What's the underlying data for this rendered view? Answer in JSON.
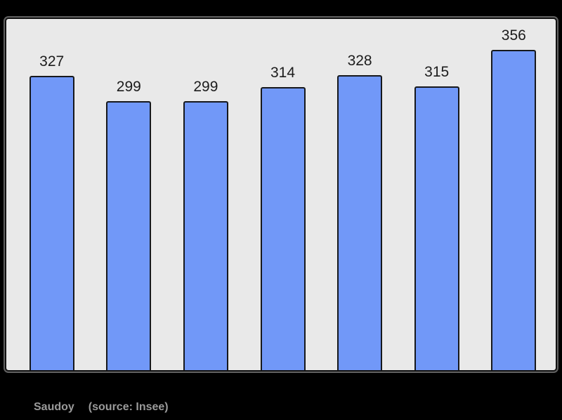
{
  "page": {
    "background_color": "#000000"
  },
  "chart_data": {
    "type": "bar",
    "title": "",
    "xlabel": "",
    "ylabel": "",
    "categories": [
      "",
      "",
      "",
      "",
      "",
      "",
      ""
    ],
    "values": [
      327,
      299,
      299,
      314,
      328,
      315,
      356
    ],
    "value_labels": [
      "327",
      "299",
      "299",
      "314",
      "328",
      "315",
      "356"
    ],
    "ylim": [
      0,
      390
    ],
    "grid": false,
    "legend": false,
    "axes_shown": false,
    "bar_color": "#7198F8",
    "bar_border_color": "#16181C",
    "plot_background_color": "#E9E9E9",
    "frame_border_color": "#121212",
    "value_label_color": "#1C1C1C"
  },
  "caption": {
    "commune": "Saudoy",
    "source_note": "(source: Insee)",
    "color": "#9A9A9A"
  }
}
